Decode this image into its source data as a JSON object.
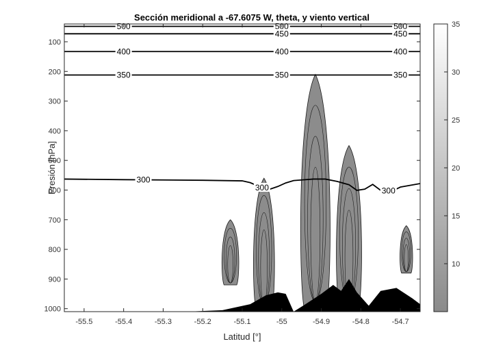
{
  "chart_data": {
    "type": "contour",
    "title": "Sección meridional a -67.6075 W, theta, y viento vertical",
    "xlabel": "Latitud [°]",
    "ylabel": "Presión [hPa]",
    "xlim": [
      -55.55,
      -54.65
    ],
    "ylim": [
      1010,
      40
    ],
    "y_reversed": true,
    "xticks": [
      -55.5,
      -55.4,
      -55.3,
      -55.2,
      -55.1,
      -55.0,
      -54.9,
      -54.8,
      -54.7
    ],
    "xtick_labels": [
      "-55.5",
      "-55.4",
      "-55.3",
      "-55.2",
      "-55.1",
      "-55",
      "-54.9",
      "-54.8",
      "-54.7"
    ],
    "yticks": [
      100,
      200,
      300,
      400,
      500,
      600,
      700,
      800,
      900,
      1000
    ],
    "ytick_labels": [
      "100",
      "200",
      "300",
      "400",
      "500",
      "600",
      "700",
      "800",
      "900",
      "1000"
    ],
    "colorbar": {
      "min": 5,
      "max": 35,
      "ticks": [
        10,
        15,
        20,
        25,
        30,
        35
      ],
      "tick_labels": [
        "10",
        "15",
        "20",
        "25",
        "30",
        "35"
      ],
      "colormap": "gray"
    },
    "theta_contours": [
      {
        "level": 500,
        "label": "500",
        "pressure": 48,
        "labels_at_lat": [
          -55.4,
          -55.0,
          -54.7
        ]
      },
      {
        "level": 450,
        "label": "450",
        "pressure": 73,
        "labels_at_lat": [
          -55.0,
          -54.7
        ]
      },
      {
        "level": 400,
        "label": "400",
        "pressure": 133,
        "labels_at_lat": [
          -55.4,
          -55.0,
          -54.7
        ]
      },
      {
        "level": 350,
        "label": "350",
        "pressure": 212,
        "labels_at_lat": [
          -55.4,
          -55.0,
          -54.7
        ]
      },
      {
        "level": 300,
        "label": "300",
        "labels_at_lat": [
          -55.35,
          -55.05,
          -54.73
        ],
        "points": [
          [
            -55.55,
            563
          ],
          [
            -55.4,
            565
          ],
          [
            -55.2,
            567
          ],
          [
            -55.1,
            569
          ],
          [
            -55.08,
            575
          ],
          [
            -55.05,
            592
          ],
          [
            -55.03,
            597
          ],
          [
            -55.01,
            588
          ],
          [
            -54.99,
            576
          ],
          [
            -54.97,
            568
          ],
          [
            -54.95,
            566
          ],
          [
            -54.92,
            563
          ],
          [
            -54.89,
            563
          ],
          [
            -54.86,
            571
          ],
          [
            -54.83,
            582
          ],
          [
            -54.81,
            601
          ],
          [
            -54.79,
            597
          ],
          [
            -54.77,
            581
          ],
          [
            -54.75,
            601
          ],
          [
            -54.72,
            603
          ],
          [
            -54.7,
            590
          ],
          [
            -54.65,
            578
          ]
        ]
      }
    ],
    "vertical_wind_regions": [
      {
        "region": "cell-left",
        "lat_range": [
          -55.15,
          -55.11
        ],
        "pressure_range": [
          700,
          920
        ],
        "shade": 0.55
      },
      {
        "region": "column-a",
        "lat_range": [
          -55.07,
          -55.02
        ],
        "pressure_range": [
          560,
          1000
        ],
        "shade": 0.55
      },
      {
        "region": "column-b",
        "lat_range": [
          -54.95,
          -54.88
        ],
        "pressure_range": [
          210,
          1000
        ],
        "shade": 0.55
      },
      {
        "region": "column-c",
        "lat_range": [
          -54.86,
          -54.8
        ],
        "pressure_range": [
          450,
          1000
        ],
        "shade": 0.55
      },
      {
        "region": "cell-right",
        "lat_range": [
          -54.7,
          -54.67
        ],
        "pressure_range": [
          720,
          880
        ],
        "shade": 0.55
      }
    ],
    "terrain": {
      "description": "topography shown filled black at the bottom",
      "points": [
        [
          -55.24,
          1010
        ],
        [
          -55.15,
          1005
        ],
        [
          -55.08,
          985
        ],
        [
          -55.04,
          955
        ],
        [
          -55.01,
          945
        ],
        [
          -54.99,
          950
        ],
        [
          -54.97,
          1010
        ],
        [
          -54.94,
          985
        ],
        [
          -54.9,
          950
        ],
        [
          -54.87,
          920
        ],
        [
          -54.85,
          940
        ],
        [
          -54.83,
          900
        ],
        [
          -54.81,
          945
        ],
        [
          -54.78,
          990
        ],
        [
          -54.75,
          940
        ],
        [
          -54.71,
          930
        ],
        [
          -54.67,
          965
        ],
        [
          -54.65,
          985
        ]
      ]
    }
  }
}
